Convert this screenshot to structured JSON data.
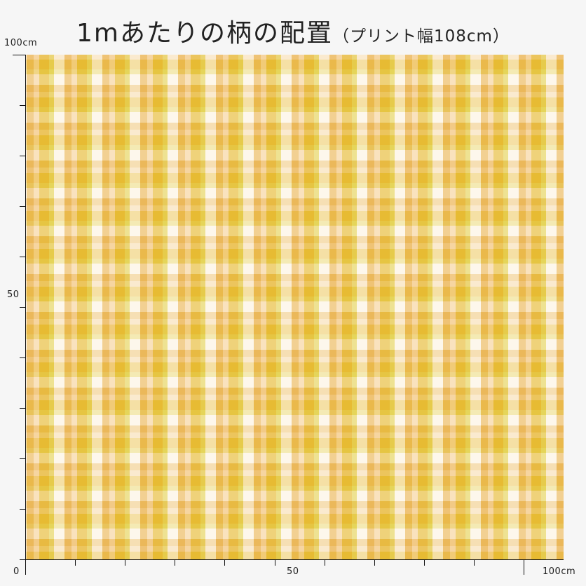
{
  "title": {
    "main": "1mあたりの柄の配置",
    "sub": "（プリント幅108cm）"
  },
  "y_axis": {
    "label_top": "100cm",
    "label_mid": "50",
    "label_origin": "0"
  },
  "x_axis": {
    "label_mid": "50",
    "label_end": "100cm"
  },
  "colors": {
    "background": "#f6f6f6",
    "cream": "#fcefd8",
    "gold": "#e4b51f",
    "orange": "#eab04a",
    "peach": "#f6d29a",
    "lemon": "#e1d24a",
    "white": "#fef7ef"
  }
}
